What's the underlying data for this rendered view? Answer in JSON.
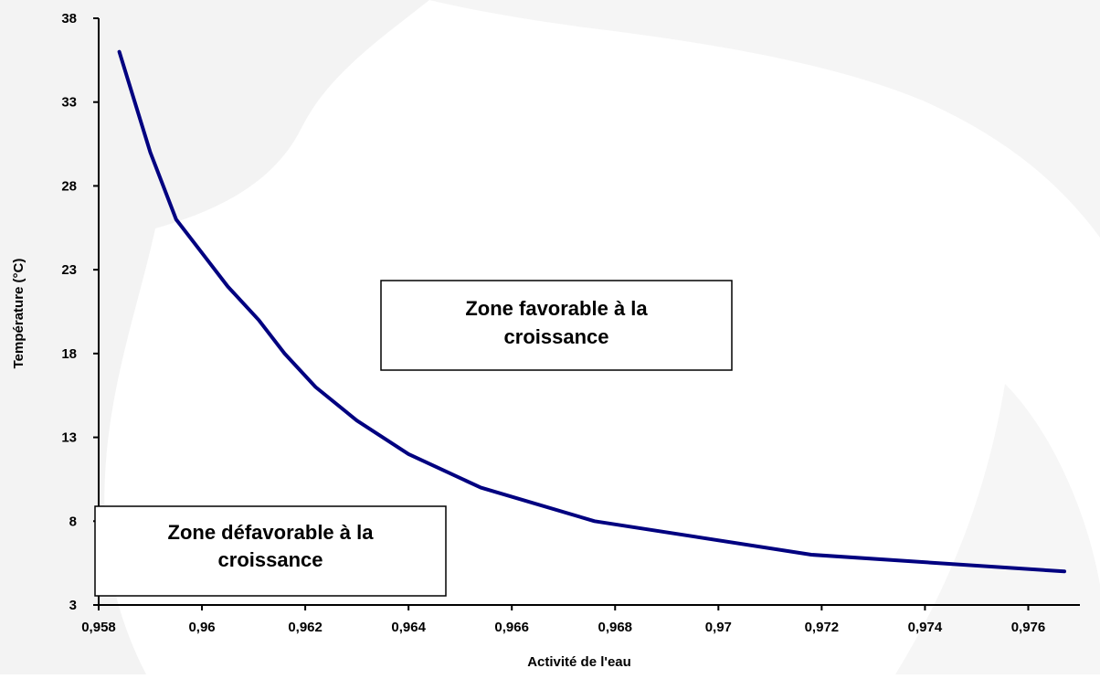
{
  "chart_data": {
    "type": "line",
    "xlabel": "Activité de l'eau",
    "ylabel": "Température (°C)",
    "xlim": [
      0.958,
      0.977
    ],
    "ylim": [
      3,
      38
    ],
    "x_ticks": [
      0.958,
      0.96,
      0.962,
      0.964,
      0.966,
      0.968,
      0.97,
      0.972,
      0.974,
      0.976
    ],
    "x_tick_labels": [
      "0,958",
      "0,96",
      "0,962",
      "0,964",
      "0,966",
      "0,968",
      "0,97",
      "0,972",
      "0,974",
      "0,976"
    ],
    "y_ticks": [
      3,
      8,
      13,
      18,
      23,
      28,
      33,
      38
    ],
    "y_tick_labels": [
      "3",
      "8",
      "13",
      "18",
      "23",
      "28",
      "33",
      "38"
    ],
    "grid": false,
    "legend": false,
    "series": [
      {
        "color": "#000080",
        "x": [
          0.9584,
          0.959,
          0.9595,
          0.96,
          0.9605,
          0.9611,
          0.9616,
          0.9622,
          0.963,
          0.964,
          0.9654,
          0.9676,
          0.9718,
          0.9767
        ],
        "y": [
          36,
          30,
          26,
          24,
          22,
          20,
          18,
          16,
          14,
          12,
          10,
          8,
          6,
          5
        ]
      }
    ],
    "annotations": [
      {
        "text": "Zone favorable à la croissance",
        "lines": [
          "Zone favorable à la",
          "croissance"
        ]
      },
      {
        "text": "Zone défavorable à la croissance",
        "lines": [
          "Zone défavorable à la",
          "croissance"
        ]
      }
    ]
  }
}
